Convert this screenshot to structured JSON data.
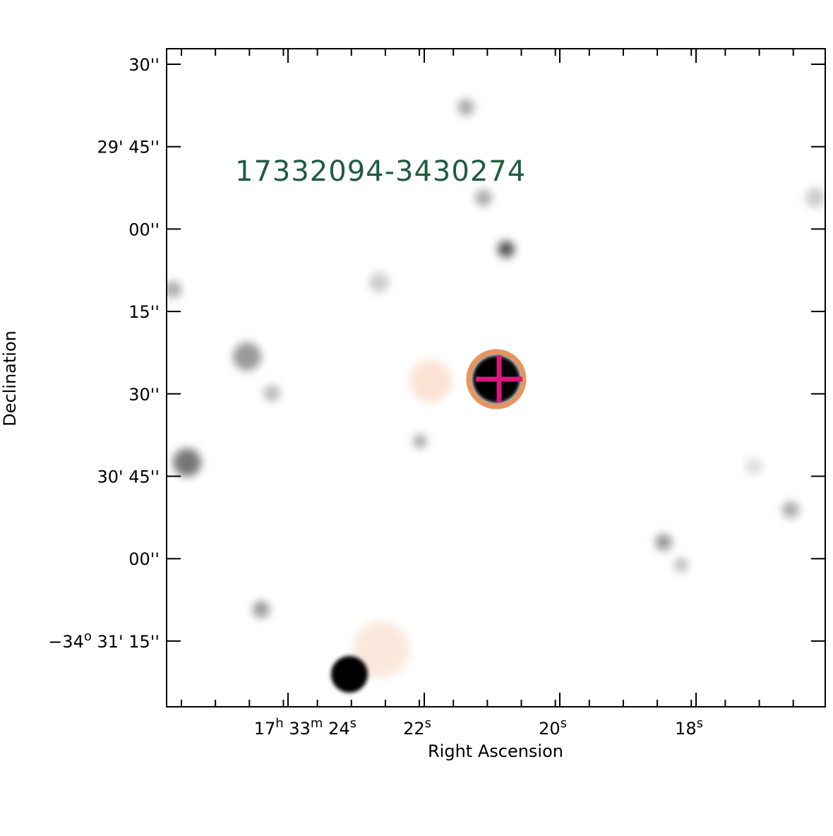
{
  "image": {
    "title": "17332094-3430274"
  },
  "axes": {
    "x_label": "Right Ascension",
    "y_label": "Declination",
    "x_ticks": [
      [
        "17",
        "h",
        " 33",
        "m",
        " 24",
        "s"
      ],
      [
        "22",
        "s"
      ],
      [
        "20",
        "s"
      ],
      [
        "18",
        "s"
      ]
    ],
    "y_ticks": [
      [
        "30''"
      ],
      [
        "29' 45''"
      ],
      [
        "00''"
      ],
      [
        "15''"
      ],
      [
        "30''"
      ],
      [
        "30' 45''"
      ],
      [
        "00''"
      ],
      [
        "−34",
        "o",
        " 31' 15''"
      ]
    ]
  }
}
